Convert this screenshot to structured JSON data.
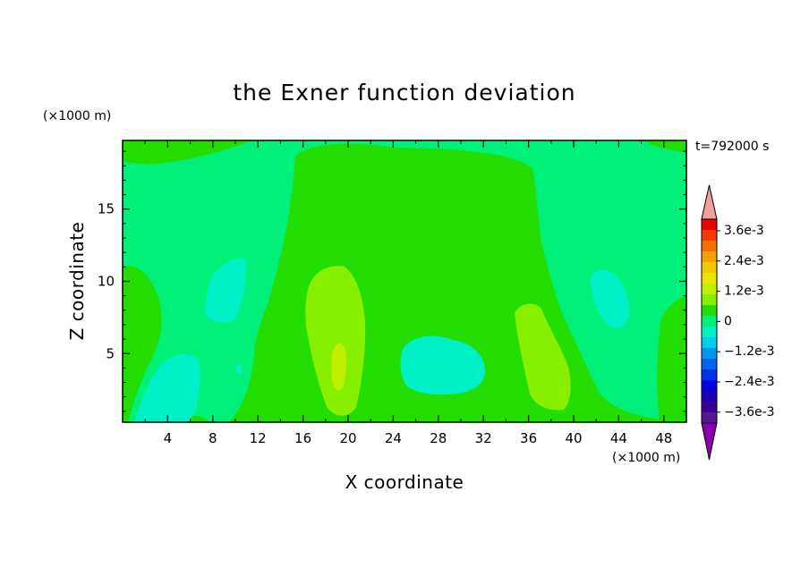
{
  "chart_data": {
    "type": "heatmap",
    "title": "the Exner function deviation",
    "xlabel": "X coordinate",
    "ylabel": "Z coordinate",
    "x_unit": "(×1000 m)",
    "y_unit": "(×1000 m)",
    "time_label": "t=792000 s",
    "xlim": [
      0,
      50
    ],
    "ylim": [
      0.25,
      19.75
    ],
    "x_ticks": [
      "4",
      "8",
      "12",
      "16",
      "20",
      "24",
      "28",
      "32",
      "36",
      "40",
      "44",
      "48"
    ],
    "y_ticks": [
      "5",
      "10",
      "15"
    ],
    "colorbar": {
      "labels": [
        "3.6e-3",
        "2.4e-3",
        "1.2e-3",
        "0",
        "−1.2e-3",
        "−2.4e-3",
        "−3.6e-3"
      ],
      "levels_top_to_bottom": [
        "#ee0000",
        "#f23a00",
        "#f46e00",
        "#f8a000",
        "#f2c800",
        "#ece400",
        "#c0f000",
        "#86f000",
        "#24dd00",
        "#00f07a",
        "#00f0c8",
        "#00ccee",
        "#0096f0",
        "#0064f0",
        "#0032e8",
        "#0000e0",
        "#1a00b4",
        "#3a0096",
        "#5a1496"
      ],
      "over_color": "#f0a0a0",
      "under_color": "#8c00b4"
    },
    "fields": {
      "background": "#00f07a",
      "positive_weak": "#24dd00",
      "positive_mid": "#86f000",
      "positive_strong": "#c0f000",
      "negative_weak": "#00f0c8"
    }
  }
}
